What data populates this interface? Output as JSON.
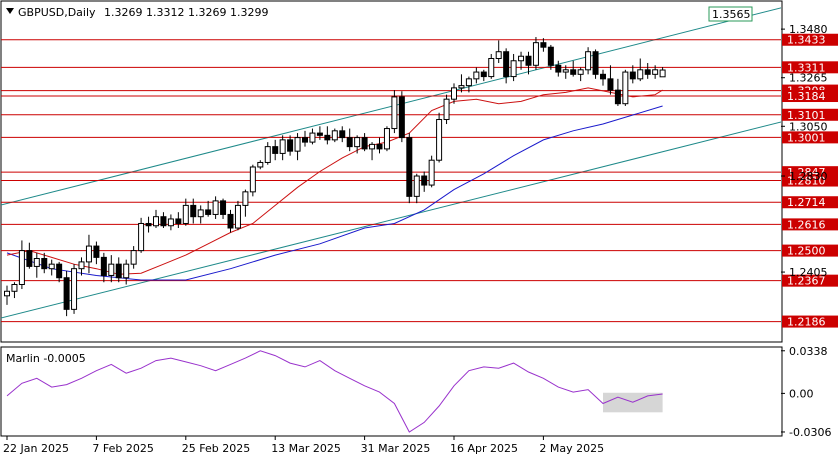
{
  "header": {
    "symbol": "GBPUSD,Daily",
    "ohlc": "1.3269 1.3312 1.3269 1.3299",
    "indicator_label": "Marlin -0.0005"
  },
  "chart_data": {
    "type": "candlestick",
    "ylim": [
      1.21,
      1.36
    ],
    "osc_ylim": [
      -0.033,
      0.036
    ],
    "price_ticks": [
      "1.3480",
      "1.3265",
      "1.3050",
      "1.2830",
      "1.2405"
    ],
    "osc_ticks": [
      "0.0338",
      "0.00",
      "-0.0306"
    ],
    "x_ticks": [
      {
        "label": "22 Jan 2025",
        "index": 0
      },
      {
        "label": "7 Feb 2025",
        "index": 12
      },
      {
        "label": "25 Feb 2025",
        "index": 24
      },
      {
        "label": "13 Mar 2025",
        "index": 36
      },
      {
        "label": "31 Mar 2025",
        "index": 48
      },
      {
        "label": "16 Apr 2025",
        "index": 60
      },
      {
        "label": "2 May 2025",
        "index": 72
      }
    ],
    "levels": [
      {
        "value": 1.3433,
        "label": "1.3433"
      },
      {
        "value": 1.3311,
        "label": "1.3311"
      },
      {
        "value": 1.3208,
        "label": "1.3208"
      },
      {
        "value": 1.3184,
        "label": "1.3184"
      },
      {
        "value": 1.3101,
        "label": "1.3101"
      },
      {
        "value": 1.3001,
        "label": "1.3001"
      },
      {
        "value": 1.2847,
        "label": "1.2847"
      },
      {
        "value": 1.281,
        "label": "1.2810"
      },
      {
        "value": 1.2714,
        "label": "1.2714"
      },
      {
        "value": 1.2616,
        "label": "1.2616"
      },
      {
        "value": 1.25,
        "label": "1.2500"
      },
      {
        "value": 1.2367,
        "label": "1.2367"
      },
      {
        "value": 1.2186,
        "label": "1.2186"
      }
    ],
    "channel_label": "1.3565",
    "channel_upper": [
      [
        -1,
        1.27
      ],
      [
        104,
        1.3575
      ]
    ],
    "channel_lower": [
      [
        -1,
        1.22
      ],
      [
        104,
        1.307
      ]
    ],
    "candles": [
      [
        1.23,
        1.2345,
        1.226,
        1.232
      ],
      [
        1.232,
        1.236,
        1.229,
        1.235
      ],
      [
        1.235,
        1.2545,
        1.233,
        1.25
      ],
      [
        1.25,
        1.2535,
        1.242,
        1.243
      ],
      [
        1.243,
        1.249,
        1.238,
        1.2465
      ],
      [
        1.2465,
        1.249,
        1.24,
        1.242
      ],
      [
        1.242,
        1.246,
        1.239,
        1.244
      ],
      [
        1.244,
        1.245,
        1.236,
        1.238
      ],
      [
        1.238,
        1.241,
        1.221,
        1.224
      ],
      [
        1.224,
        1.244,
        1.222,
        1.242
      ],
      [
        1.242,
        1.247,
        1.239,
        1.245
      ],
      [
        1.245,
        1.257,
        1.24,
        1.252
      ],
      [
        1.252,
        1.254,
        1.244,
        1.247
      ],
      [
        1.247,
        1.249,
        1.236,
        1.239
      ],
      [
        1.239,
        1.248,
        1.236,
        1.244
      ],
      [
        1.244,
        1.247,
        1.236,
        1.238
      ],
      [
        1.238,
        1.246,
        1.235,
        1.244
      ],
      [
        1.244,
        1.252,
        1.242,
        1.25
      ],
      [
        1.25,
        1.2645,
        1.249,
        1.262
      ],
      [
        1.262,
        1.265,
        1.258,
        1.261
      ],
      [
        1.261,
        1.268,
        1.26,
        1.265
      ],
      [
        1.265,
        1.267,
        1.26,
        1.261
      ],
      [
        1.261,
        1.266,
        1.259,
        1.264
      ],
      [
        1.264,
        1.267,
        1.26,
        1.262
      ],
      [
        1.262,
        1.273,
        1.261,
        1.27
      ],
      [
        1.27,
        1.273,
        1.262,
        1.265
      ],
      [
        1.265,
        1.27,
        1.262,
        1.268
      ],
      [
        1.268,
        1.272,
        1.265,
        1.266
      ],
      [
        1.266,
        1.274,
        1.264,
        1.272
      ],
      [
        1.272,
        1.273,
        1.264,
        1.266
      ],
      [
        1.266,
        1.268,
        1.258,
        1.26
      ],
      [
        1.26,
        1.272,
        1.259,
        1.27
      ],
      [
        1.27,
        1.277,
        1.265,
        1.276
      ],
      [
        1.276,
        1.288,
        1.274,
        1.287
      ],
      [
        1.287,
        1.29,
        1.286,
        1.289
      ],
      [
        1.289,
        1.298,
        1.288,
        1.296
      ],
      [
        1.296,
        1.299,
        1.29,
        1.293
      ],
      [
        1.293,
        1.301,
        1.29,
        1.299
      ],
      [
        1.299,
        1.301,
        1.292,
        1.294
      ],
      [
        1.294,
        1.302,
        1.29,
        1.3
      ],
      [
        1.3,
        1.303,
        1.296,
        1.298
      ],
      [
        1.298,
        1.304,
        1.297,
        1.302
      ],
      [
        1.302,
        1.305,
        1.299,
        1.301
      ],
      [
        1.301,
        1.305,
        1.297,
        1.299
      ],
      [
        1.299,
        1.304,
        1.298,
        1.303
      ],
      [
        1.303,
        1.305,
        1.298,
        1.3
      ],
      [
        1.3,
        1.304,
        1.294,
        1.296
      ],
      [
        1.296,
        1.301,
        1.293,
        1.3
      ],
      [
        1.3,
        1.302,
        1.294,
        1.295
      ],
      [
        1.295,
        1.298,
        1.29,
        1.297
      ],
      [
        1.297,
        1.3,
        1.293,
        1.295
      ],
      [
        1.295,
        1.305,
        1.294,
        1.304
      ],
      [
        1.304,
        1.321,
        1.302,
        1.318
      ],
      [
        1.318,
        1.3205,
        1.298,
        1.3
      ],
      [
        1.3,
        1.302,
        1.271,
        1.274
      ],
      [
        1.274,
        1.284,
        1.271,
        1.283
      ],
      [
        1.283,
        1.285,
        1.276,
        1.279
      ],
      [
        1.279,
        1.292,
        1.278,
        1.29
      ],
      [
        1.29,
        1.311,
        1.289,
        1.308
      ],
      [
        1.308,
        1.319,
        1.306,
        1.317
      ],
      [
        1.317,
        1.324,
        1.315,
        1.322
      ],
      [
        1.322,
        1.328,
        1.32,
        1.323
      ],
      [
        1.323,
        1.327,
        1.32,
        1.326
      ],
      [
        1.326,
        1.331,
        1.324,
        1.329
      ],
      [
        1.329,
        1.33,
        1.325,
        1.327
      ],
      [
        1.327,
        1.337,
        1.326,
        1.335
      ],
      [
        1.335,
        1.343,
        1.333,
        1.338
      ],
      [
        1.338,
        1.3395,
        1.324,
        1.327
      ],
      [
        1.327,
        1.337,
        1.325,
        1.334
      ],
      [
        1.334,
        1.338,
        1.33,
        1.336
      ],
      [
        1.336,
        1.338,
        1.328,
        1.332
      ],
      [
        1.332,
        1.3445,
        1.33,
        1.342
      ],
      [
        1.342,
        1.344,
        1.338,
        1.34
      ],
      [
        1.34,
        1.341,
        1.33,
        1.332
      ],
      [
        1.332,
        1.334,
        1.327,
        1.329
      ],
      [
        1.329,
        1.332,
        1.326,
        1.33
      ],
      [
        1.33,
        1.334,
        1.327,
        1.328
      ],
      [
        1.328,
        1.331,
        1.325,
        1.33
      ],
      [
        1.33,
        1.34,
        1.328,
        1.338
      ],
      [
        1.338,
        1.339,
        1.326,
        1.328
      ],
      [
        1.328,
        1.33,
        1.323,
        1.326
      ],
      [
        1.326,
        1.332,
        1.319,
        1.321
      ],
      [
        1.321,
        1.326,
        1.314,
        1.315
      ],
      [
        1.315,
        1.33,
        1.314,
        1.329
      ],
      [
        1.329,
        1.332,
        1.324,
        1.326
      ],
      [
        1.326,
        1.335,
        1.325,
        1.33
      ],
      [
        1.33,
        1.333,
        1.326,
        1.328
      ],
      [
        1.328,
        1.332,
        1.326,
        1.33
      ],
      [
        1.3269,
        1.3312,
        1.3269,
        1.3299
      ]
    ],
    "ma_fast": [
      [
        0,
        1.248
      ],
      [
        3,
        1.25
      ],
      [
        6,
        1.247
      ],
      [
        9,
        1.244
      ],
      [
        12,
        1.242
      ],
      [
        15,
        1.2395
      ],
      [
        18,
        1.24
      ],
      [
        21,
        1.244
      ],
      [
        24,
        1.248
      ],
      [
        27,
        1.253
      ],
      [
        30,
        1.258
      ],
      [
        33,
        1.262
      ],
      [
        36,
        1.27
      ],
      [
        39,
        1.278
      ],
      [
        42,
        1.285
      ],
      [
        45,
        1.291
      ],
      [
        48,
        1.296
      ],
      [
        51,
        1.298
      ],
      [
        54,
        1.302
      ],
      [
        57,
        1.312
      ],
      [
        60,
        1.316
      ],
      [
        63,
        1.317
      ],
      [
        66,
        1.315
      ],
      [
        69,
        1.316
      ],
      [
        72,
        1.319
      ],
      [
        75,
        1.32
      ],
      [
        78,
        1.322
      ],
      [
        81,
        1.32
      ],
      [
        84,
        1.318
      ],
      [
        87,
        1.319
      ],
      [
        88,
        1.321
      ]
    ],
    "ma_slow": [
      [
        0,
        1.249
      ],
      [
        6,
        1.242
      ],
      [
        12,
        1.239
      ],
      [
        18,
        1.237
      ],
      [
        24,
        1.237
      ],
      [
        30,
        1.242
      ],
      [
        36,
        1.248
      ],
      [
        42,
        1.253
      ],
      [
        48,
        1.26
      ],
      [
        52,
        1.262
      ],
      [
        56,
        1.268
      ],
      [
        60,
        1.277
      ],
      [
        64,
        1.284
      ],
      [
        68,
        1.292
      ],
      [
        72,
        1.299
      ],
      [
        76,
        1.303
      ],
      [
        80,
        1.306
      ],
      [
        84,
        1.31
      ],
      [
        88,
        1.314
      ]
    ],
    "oscillator": [
      [
        0,
        -0.002
      ],
      [
        2,
        0.008
      ],
      [
        4,
        0.012
      ],
      [
        6,
        0.005
      ],
      [
        8,
        0.007
      ],
      [
        10,
        0.012
      ],
      [
        12,
        0.018
      ],
      [
        14,
        0.023
      ],
      [
        16,
        0.016
      ],
      [
        18,
        0.02
      ],
      [
        20,
        0.026
      ],
      [
        22,
        0.028
      ],
      [
        24,
        0.025
      ],
      [
        26,
        0.022
      ],
      [
        28,
        0.018
      ],
      [
        30,
        0.023
      ],
      [
        32,
        0.028
      ],
      [
        34,
        0.0338
      ],
      [
        36,
        0.03
      ],
      [
        38,
        0.024
      ],
      [
        40,
        0.021
      ],
      [
        42,
        0.026
      ],
      [
        44,
        0.018
      ],
      [
        46,
        0.012
      ],
      [
        48,
        0.006
      ],
      [
        50,
        0.001
      ],
      [
        52,
        -0.008
      ],
      [
        54,
        -0.0306
      ],
      [
        56,
        -0.023
      ],
      [
        58,
        -0.01
      ],
      [
        60,
        0.006
      ],
      [
        62,
        0.018
      ],
      [
        64,
        0.021
      ],
      [
        66,
        0.02
      ],
      [
        68,
        0.024
      ],
      [
        70,
        0.017
      ],
      [
        72,
        0.012
      ],
      [
        74,
        0.005
      ],
      [
        76,
        0.001
      ],
      [
        78,
        0.003
      ],
      [
        80,
        -0.008
      ],
      [
        82,
        -0.003
      ],
      [
        84,
        -0.007
      ],
      [
        86,
        -0.002
      ],
      [
        88,
        -0.0005
      ]
    ],
    "osc_box": {
      "from": 80,
      "to": 88,
      "top": 0.0005,
      "bottom": -0.015
    }
  },
  "colors": {
    "candle_bull": "#ffffff",
    "candle_bear": "#000000",
    "level": "#cc0000",
    "channel": "#1f8a8a",
    "ma_fast": "#cc1111",
    "ma_slow": "#1a1acc",
    "oscillator": "#9932cc"
  }
}
